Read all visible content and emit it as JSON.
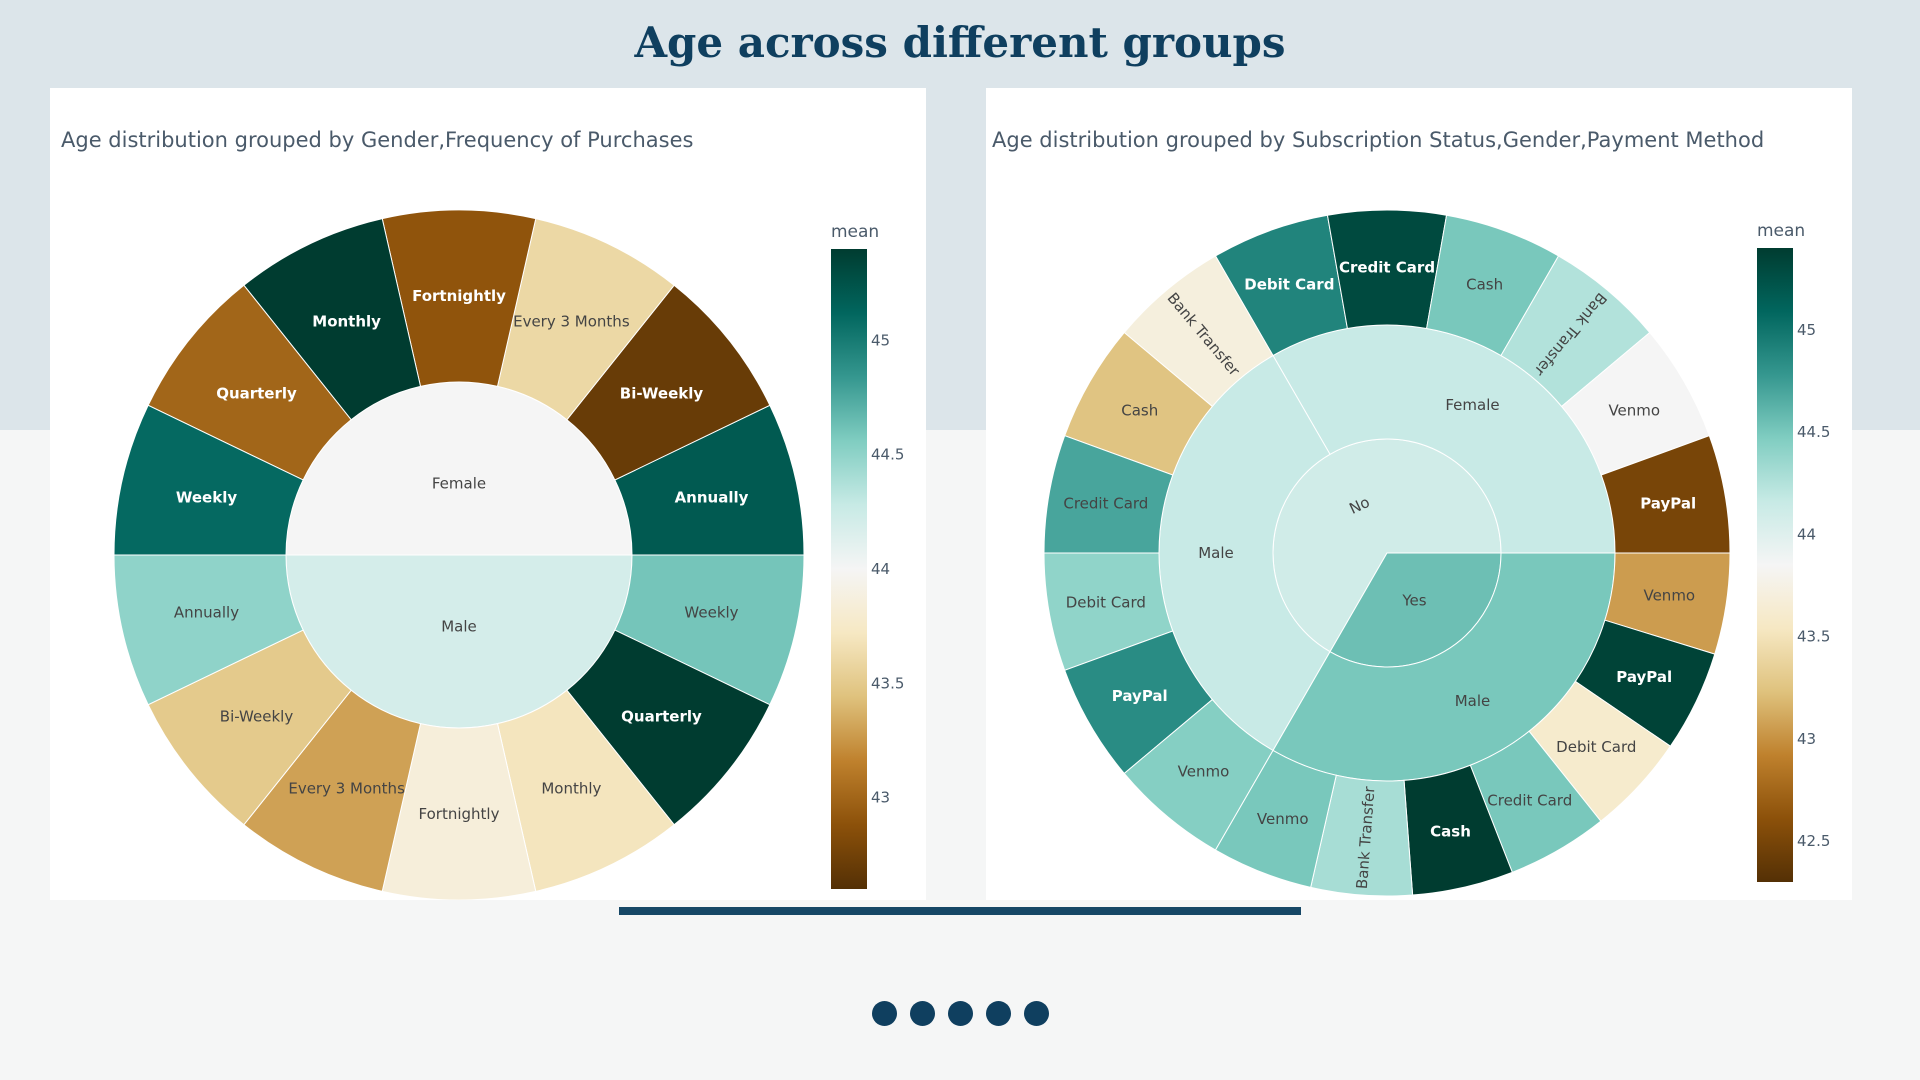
{
  "page": {
    "title": "Age across different groups",
    "pager_dots": 5
  },
  "chart_data": [
    {
      "type": "sunburst",
      "title": "Age distribution grouped by Gender,Frequency of Purchases",
      "colorbar": {
        "title": "mean",
        "range": [
          42.6,
          45.4
        ],
        "ticks": [
          43,
          43.5,
          44,
          44.5,
          45
        ]
      },
      "colorscale": "BrBG",
      "groups": [
        {
          "label": "Female",
          "mean": 44.0,
          "children": [
            {
              "label": "Annually",
              "mean": 45.2
            },
            {
              "label": "Bi-Weekly",
              "mean": 42.7
            },
            {
              "label": "Every 3 Months",
              "mean": 43.6
            },
            {
              "label": "Fortnightly",
              "mean": 42.9
            },
            {
              "label": "Monthly",
              "mean": 45.4
            },
            {
              "label": "Quarterly",
              "mean": 43.0
            },
            {
              "label": "Weekly",
              "mean": 45.1
            }
          ]
        },
        {
          "label": "Male",
          "mean": 44.2,
          "children": [
            {
              "label": "Weekly",
              "mean": 44.6
            },
            {
              "label": "Quarterly",
              "mean": 45.4
            },
            {
              "label": "Monthly",
              "mean": 43.7
            },
            {
              "label": "Fortnightly",
              "mean": 43.85
            },
            {
              "label": "Every 3 Months",
              "mean": 43.3
            },
            {
              "label": "Bi-Weekly",
              "mean": 43.5
            },
            {
              "label": "Annually",
              "mean": 44.5
            }
          ]
        }
      ]
    },
    {
      "type": "sunburst",
      "title": "Age distribution grouped by Subscription Status,Gender,Payment Method",
      "colorbar": {
        "title": "mean",
        "range": [
          42.3,
          45.4
        ],
        "ticks": [
          42.5,
          43,
          43.5,
          44,
          44.5,
          45
        ]
      },
      "colorscale": "BrBG",
      "groups": [
        {
          "label": "No",
          "mean": 44.1,
          "children": [
            {
              "label": "Female",
              "mean": 44.15,
              "children": [
                {
                  "label": "Debit Card",
                  "mean": 44.9
                },
                {
                  "label": "Credit Card",
                  "mean": 45.3
                },
                {
                  "label": "Cash",
                  "mean": 44.5
                },
                {
                  "label": "Bank Transfer",
                  "mean": 44.25
                },
                {
                  "label": "Venmo",
                  "mean": 43.85
                },
                {
                  "label": "PayPal",
                  "mean": 42.5
                }
              ]
            },
            {
              "label": "Male",
              "mean": 44.15,
              "children": [
                {
                  "label": "Bank Transfer",
                  "mean": 43.7
                },
                {
                  "label": "Cash",
                  "mean": 43.25
                },
                {
                  "label": "Credit Card",
                  "mean": 44.7
                },
                {
                  "label": "Debit Card",
                  "mean": 44.4
                },
                {
                  "label": "PayPal",
                  "mean": 44.85
                },
                {
                  "label": "Venmo",
                  "mean": 44.45
                }
              ]
            }
          ]
        },
        {
          "label": "Yes",
          "mean": 44.55,
          "children": [
            {
              "label": "Male",
              "mean": 44.5,
              "children": [
                {
                  "label": "Venmo",
                  "mean": 43.05
                },
                {
                  "label": "PayPal",
                  "mean": 45.35
                },
                {
                  "label": "Debit Card",
                  "mean": 43.6
                },
                {
                  "label": "Credit Card",
                  "mean": 44.5
                },
                {
                  "label": "Cash",
                  "mean": 45.4
                },
                {
                  "label": "Bank Transfer",
                  "mean": 44.3
                },
                {
                  "label": "Venmo",
                  "mean": 44.5
                }
              ]
            }
          ]
        }
      ]
    }
  ]
}
